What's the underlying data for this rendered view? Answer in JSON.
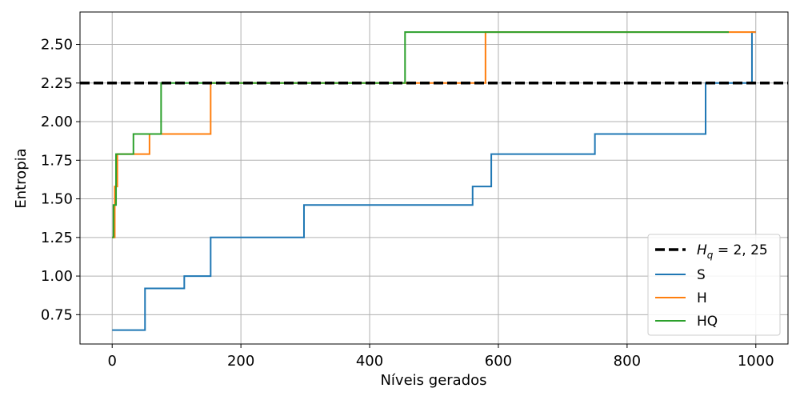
{
  "chart_data": {
    "type": "line",
    "title": "",
    "xlabel": "Níveis gerados",
    "ylabel": "Entropia",
    "xlim": [
      -50,
      1050
    ],
    "ylim": [
      0.56,
      2.71
    ],
    "grid": true,
    "legend_position": "lower-right",
    "x_ticks": [
      0,
      200,
      400,
      600,
      800,
      1000
    ],
    "x_tick_labels": [
      "0",
      "200",
      "400",
      "600",
      "800",
      "1000"
    ],
    "y_ticks": [
      0.75,
      1.0,
      1.25,
      1.5,
      1.75,
      2.0,
      2.25,
      2.5
    ],
    "y_tick_labels": [
      "0.75",
      "1.00",
      "1.25",
      "1.50",
      "1.75",
      "2.00",
      "2.25",
      "2.50"
    ],
    "reference_line": {
      "name": "H_q = 2,25",
      "label_main": "H",
      "label_sub": "q",
      "label_rest": " = 2, 25",
      "value": 2.25,
      "color": "#000000",
      "style": "dashed"
    },
    "series": [
      {
        "name": "S",
        "color": "#1f77b4",
        "x": [
          0,
          51,
          51,
          112,
          112,
          153,
          153,
          298,
          298,
          560,
          560,
          589,
          589,
          750,
          750,
          922,
          922,
          994,
          994,
          1000
        ],
        "y": [
          0.65,
          0.65,
          0.92,
          0.92,
          1.0,
          1.0,
          1.25,
          1.25,
          1.46,
          1.46,
          1.58,
          1.58,
          1.79,
          1.79,
          1.92,
          1.92,
          2.25,
          2.25,
          2.58,
          2.58
        ]
      },
      {
        "name": "H",
        "color": "#ff7f0e",
        "x": [
          0,
          4,
          4,
          8,
          8,
          58,
          58,
          153,
          153,
          580,
          580,
          1000
        ],
        "y": [
          1.25,
          1.25,
          1.58,
          1.58,
          1.79,
          1.79,
          1.92,
          1.92,
          2.25,
          2.25,
          2.58,
          2.58
        ]
      },
      {
        "name": "HQ",
        "color": "#2ca02c",
        "x": [
          0,
          2,
          2,
          6,
          6,
          33,
          33,
          76,
          76,
          455,
          455,
          958
        ],
        "y": [
          1.25,
          1.25,
          1.46,
          1.46,
          1.79,
          1.79,
          1.92,
          1.92,
          2.25,
          2.25,
          2.58,
          2.58
        ]
      }
    ]
  }
}
